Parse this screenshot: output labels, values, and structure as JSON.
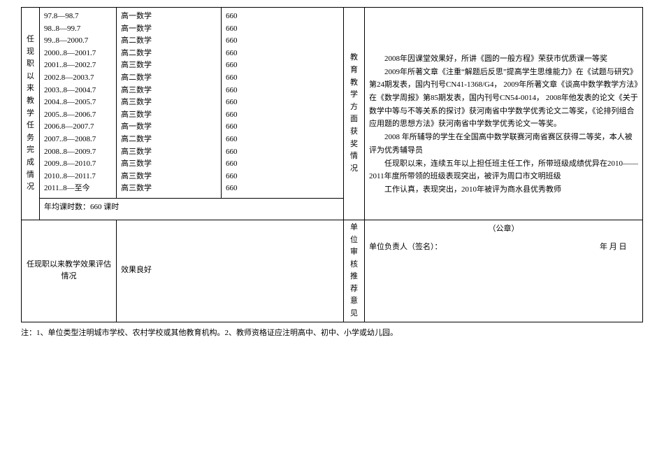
{
  "labels": {
    "teaching_task": "任现职以来教学任务完成情况",
    "avg_hours_prefix": "年均课时数：",
    "avg_hours_suffix": " 课时",
    "eval_label": "任现职以来教学效果评估情况",
    "eval_value": "效果良好",
    "awards_label": "教育教学方面获奖情况",
    "audit_label": "单位审核推荐意见",
    "seal": "（公章）",
    "signer": "单位负责人（签名）：",
    "date": "年  月  日",
    "note": "注：1、单位类型注明城市学校、农村学校或其他教育机构。2、教师资格证应注明高中、初中、小学或幼儿园。"
  },
  "teaching": {
    "avg_hours": "660",
    "rows": [
      {
        "period": "97.8—98.7",
        "subject": "高一数学",
        "hours": "660"
      },
      {
        "period": "98..8—99.7",
        "subject": "高一数学",
        "hours": "660"
      },
      {
        "period": "99..8—2000.7",
        "subject": "高二数学",
        "hours": "660"
      },
      {
        "period": "2000..8—2001.7",
        "subject": "高二数学",
        "hours": "660"
      },
      {
        "period": "2001..8—2002.7",
        "subject": "高三数学",
        "hours": "660"
      },
      {
        "period": "2002.8—2003.7",
        "subject": "高二数学",
        "hours": "660"
      },
      {
        "period": "2003..8—2004.7",
        "subject": "高三数学",
        "hours": "660"
      },
      {
        "period": "2004..8—2005.7",
        "subject": "高三数学",
        "hours": "660"
      },
      {
        "period": "2005..8—2006.7",
        "subject": "高三数学",
        "hours": "660"
      },
      {
        "period": "2006.8—2007.7",
        "subject": "高一数学",
        "hours": "660"
      },
      {
        "period": "2007..8—2008.7",
        "subject": "高二数学",
        "hours": "660"
      },
      {
        "period": "2008..8—2009.7",
        "subject": "高三数学",
        "hours": "660"
      },
      {
        "period": "2009..8—2010.7",
        "subject": "高三数学",
        "hours": "660"
      },
      {
        "period": "2010..8—2011.7",
        "subject": "高三数学",
        "hours": "660"
      },
      {
        "period": "2011..8—至今",
        "subject": "高三数学",
        "hours": "660"
      }
    ]
  },
  "awards": [
    "2008年因课堂效果好，所讲《圆的一般方程》荣获市优质课一等奖",
    "2009年所著文章《注重“解题后反思”提高学生思维能力》在《试题与研究》第24期发表，国内刊号CN41-1368/G4，  2009年所著文章《谈高中数学教学方法》在《数学周报》第85期发表，国内刊号CN54-0014，  2008年他发表的论文《关于数学中等与不等关系的探讨》获河南省中学数学优秀论文二等奖，《论排列组合应用题的思想方法》获河南省中学数学优秀论文一等奖。",
    "2008 年所辅导的学生在全国高中数学联赛河南省赛区获得二等奖，本人被评为优秀辅导员",
    "任现职以来，连续五年以上担任班主任工作，所带班级成绩优异在2010——2011年度所带领的班级表现突出，被评为周口市文明班级",
    "工作认真，表现突出，2010年被评为商水县优秀教师"
  ]
}
